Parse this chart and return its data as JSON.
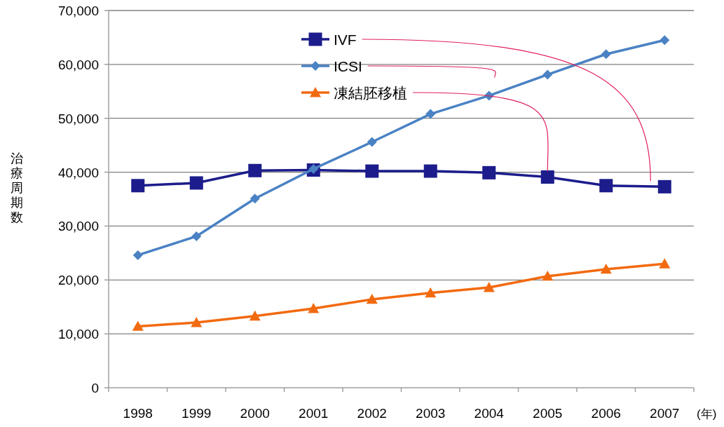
{
  "chart_data": {
    "type": "line",
    "ylabel": "治療周期数",
    "xlabel": "(年)",
    "categories": [
      "1998",
      "1999",
      "2000",
      "2001",
      "2002",
      "2003",
      "2004",
      "2005",
      "2006",
      "2007"
    ],
    "series": [
      {
        "name": "IVF",
        "color": "#1c1c8c",
        "marker": "square",
        "values": [
          37500,
          38000,
          40300,
          40400,
          40200,
          40200,
          39900,
          39100,
          37500,
          37300
        ]
      },
      {
        "name": "ICSI",
        "color": "#4a82c4",
        "marker": "diamond",
        "values": [
          24600,
          28100,
          35100,
          40600,
          45600,
          50800,
          54200,
          58100,
          61900,
          64500
        ]
      },
      {
        "name": "凍結胚移植",
        "color": "#f26a10",
        "marker": "triangle",
        "values": [
          11400,
          12100,
          13300,
          14700,
          16400,
          17600,
          18600,
          20700,
          22000,
          23000
        ]
      }
    ],
    "ylim": [
      0,
      70000
    ],
    "yticks": [
      0,
      {
        "value": 10000,
        "label": "10,000"
      },
      {
        "value": 20000,
        "label": "20,000"
      },
      {
        "value": 30000,
        "label": "30,000"
      },
      {
        "value": 40000,
        "label": "40,000"
      },
      {
        "value": 50000,
        "label": "50,000"
      },
      {
        "value": 60000,
        "label": "60,000"
      },
      {
        "value": 70000,
        "label": "70,000"
      }
    ],
    "grid": "y",
    "legend": "top",
    "line_style": "solid"
  }
}
